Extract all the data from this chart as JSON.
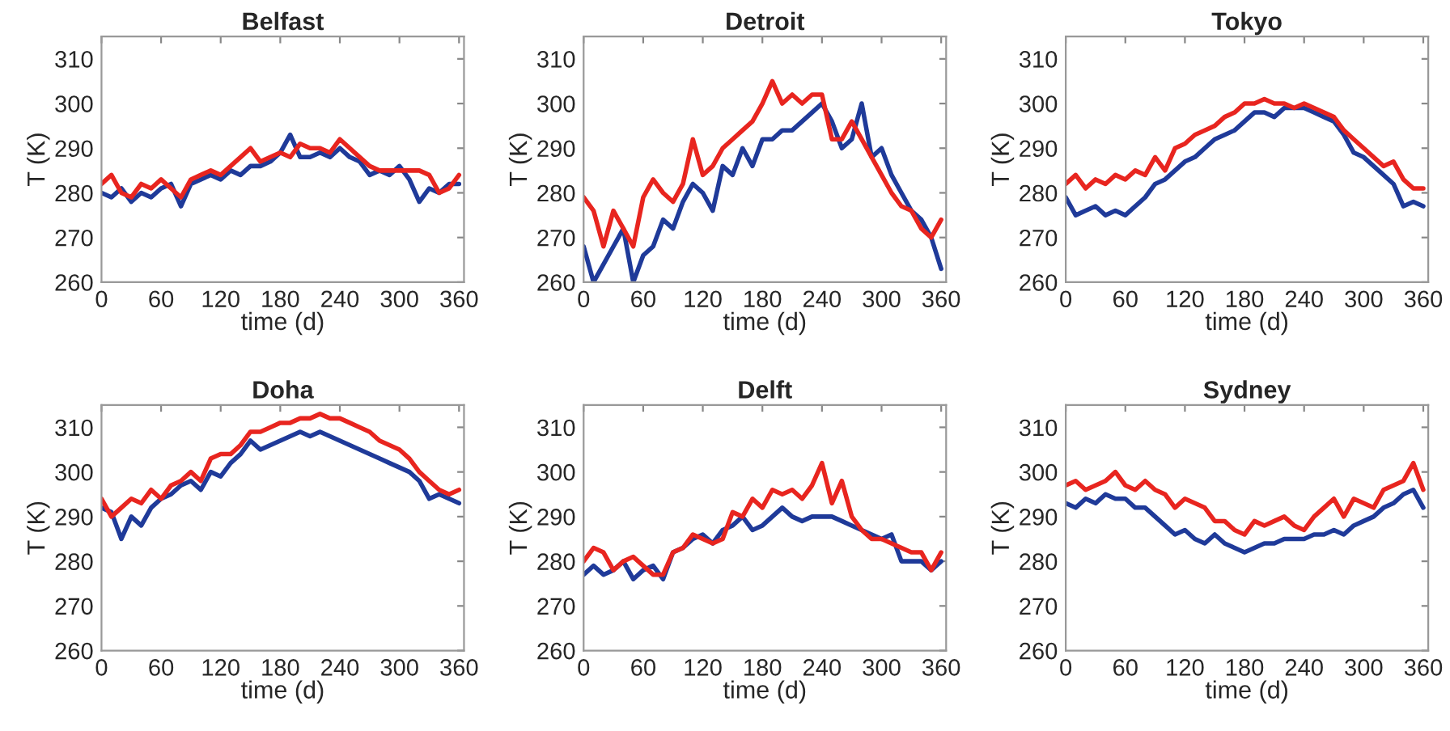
{
  "chart_data": [
    {
      "type": "line",
      "title": "Belfast",
      "xlabel": "time (d)",
      "ylabel": "T (K)",
      "xlim": [
        0,
        365
      ],
      "ylim": [
        260,
        315
      ],
      "xticks": [
        0,
        60,
        120,
        180,
        240,
        300,
        360
      ],
      "yticks": [
        260,
        270,
        280,
        290,
        300,
        310
      ],
      "grid": false,
      "legend": false,
      "x": [
        0,
        10,
        20,
        30,
        40,
        50,
        60,
        70,
        80,
        90,
        100,
        110,
        120,
        130,
        140,
        150,
        160,
        170,
        180,
        190,
        200,
        210,
        220,
        230,
        240,
        250,
        260,
        270,
        280,
        290,
        300,
        310,
        320,
        330,
        340,
        350,
        360
      ],
      "series": [
        {
          "color": "#1f3a99",
          "values": [
            280,
            279,
            281,
            278,
            280,
            279,
            281,
            282,
            277,
            282,
            283,
            284,
            283,
            285,
            284,
            286,
            286,
            287,
            289,
            293,
            288,
            288,
            289,
            288,
            290,
            288,
            287,
            284,
            285,
            284,
            286,
            283,
            278,
            281,
            280,
            282,
            282
          ]
        },
        {
          "color": "#e8251f",
          "values": [
            282,
            284,
            280,
            279,
            282,
            281,
            283,
            281,
            279,
            283,
            284,
            285,
            284,
            286,
            288,
            290,
            287,
            288,
            289,
            288,
            291,
            290,
            290,
            289,
            292,
            290,
            288,
            286,
            285,
            285,
            285,
            285,
            285,
            284,
            280,
            281,
            284
          ]
        }
      ]
    },
    {
      "type": "line",
      "title": "Detroit",
      "xlabel": "time (d)",
      "ylabel": "T (K)",
      "xlim": [
        0,
        365
      ],
      "ylim": [
        260,
        315
      ],
      "xticks": [
        0,
        60,
        120,
        180,
        240,
        300,
        360
      ],
      "yticks": [
        260,
        270,
        280,
        290,
        300,
        310
      ],
      "grid": false,
      "legend": false,
      "x": [
        0,
        10,
        20,
        30,
        40,
        50,
        60,
        70,
        80,
        90,
        100,
        110,
        120,
        130,
        140,
        150,
        160,
        170,
        180,
        190,
        200,
        210,
        220,
        230,
        240,
        250,
        260,
        270,
        280,
        290,
        300,
        310,
        320,
        330,
        340,
        350,
        360
      ],
      "series": [
        {
          "color": "#1f3a99",
          "values": [
            268,
            260,
            264,
            268,
            272,
            260,
            266,
            268,
            274,
            272,
            278,
            282,
            280,
            276,
            286,
            284,
            290,
            286,
            292,
            292,
            294,
            294,
            296,
            298,
            300,
            296,
            290,
            292,
            300,
            288,
            290,
            284,
            280,
            276,
            274,
            270,
            263
          ]
        },
        {
          "color": "#e8251f",
          "values": [
            279,
            276,
            268,
            276,
            272,
            268,
            279,
            283,
            280,
            278,
            282,
            292,
            284,
            286,
            290,
            292,
            294,
            296,
            300,
            305,
            300,
            302,
            300,
            302,
            302,
            292,
            292,
            296,
            292,
            288,
            284,
            280,
            277,
            276,
            272,
            270,
            274
          ]
        }
      ]
    },
    {
      "type": "line",
      "title": "Tokyo",
      "xlabel": "time (d)",
      "ylabel": "T (K)",
      "xlim": [
        0,
        365
      ],
      "ylim": [
        260,
        315
      ],
      "xticks": [
        0,
        60,
        120,
        180,
        240,
        300,
        360
      ],
      "yticks": [
        260,
        270,
        280,
        290,
        300,
        310
      ],
      "grid": false,
      "legend": false,
      "x": [
        0,
        10,
        20,
        30,
        40,
        50,
        60,
        70,
        80,
        90,
        100,
        110,
        120,
        130,
        140,
        150,
        160,
        170,
        180,
        190,
        200,
        210,
        220,
        230,
        240,
        250,
        260,
        270,
        280,
        290,
        300,
        310,
        320,
        330,
        340,
        350,
        360
      ],
      "series": [
        {
          "color": "#1f3a99",
          "values": [
            279,
            275,
            276,
            277,
            275,
            276,
            275,
            277,
            279,
            282,
            283,
            285,
            287,
            288,
            290,
            292,
            293,
            294,
            296,
            298,
            298,
            297,
            299,
            299,
            299,
            298,
            297,
            296,
            293,
            289,
            288,
            286,
            284,
            282,
            277,
            278,
            277
          ]
        },
        {
          "color": "#e8251f",
          "values": [
            282,
            284,
            281,
            283,
            282,
            284,
            283,
            285,
            284,
            288,
            285,
            290,
            291,
            293,
            294,
            295,
            297,
            298,
            300,
            300,
            301,
            300,
            300,
            299,
            300,
            299,
            298,
            297,
            294,
            292,
            290,
            288,
            286,
            287,
            283,
            281,
            281
          ]
        }
      ]
    },
    {
      "type": "line",
      "title": "Doha",
      "xlabel": "time (d)",
      "ylabel": "T (K)",
      "xlim": [
        0,
        365
      ],
      "ylim": [
        260,
        315
      ],
      "xticks": [
        0,
        60,
        120,
        180,
        240,
        300,
        360
      ],
      "yticks": [
        260,
        270,
        280,
        290,
        300,
        310
      ],
      "grid": false,
      "legend": false,
      "x": [
        0,
        10,
        20,
        30,
        40,
        50,
        60,
        70,
        80,
        90,
        100,
        110,
        120,
        130,
        140,
        150,
        160,
        170,
        180,
        190,
        200,
        210,
        220,
        230,
        240,
        250,
        260,
        270,
        280,
        290,
        300,
        310,
        320,
        330,
        340,
        350,
        360
      ],
      "series": [
        {
          "color": "#1f3a99",
          "values": [
            292,
            291,
            285,
            290,
            288,
            292,
            294,
            295,
            297,
            298,
            296,
            300,
            299,
            302,
            304,
            307,
            305,
            306,
            307,
            308,
            309,
            308,
            309,
            308,
            307,
            306,
            305,
            304,
            303,
            302,
            301,
            300,
            298,
            294,
            295,
            294,
            293
          ]
        },
        {
          "color": "#e8251f",
          "values": [
            294,
            290,
            292,
            294,
            293,
            296,
            294,
            297,
            298,
            300,
            298,
            303,
            304,
            304,
            306,
            309,
            309,
            310,
            311,
            311,
            312,
            312,
            313,
            312,
            312,
            311,
            310,
            309,
            307,
            306,
            305,
            303,
            300,
            298,
            296,
            295,
            296
          ]
        }
      ]
    },
    {
      "type": "line",
      "title": "Delft",
      "xlabel": "time (d)",
      "ylabel": "T (K)",
      "xlim": [
        0,
        365
      ],
      "ylim": [
        260,
        315
      ],
      "xticks": [
        0,
        60,
        120,
        180,
        240,
        300,
        360
      ],
      "yticks": [
        260,
        270,
        280,
        290,
        300,
        310
      ],
      "grid": false,
      "legend": false,
      "x": [
        0,
        10,
        20,
        30,
        40,
        50,
        60,
        70,
        80,
        90,
        100,
        110,
        120,
        130,
        140,
        150,
        160,
        170,
        180,
        190,
        200,
        210,
        220,
        230,
        240,
        250,
        260,
        270,
        280,
        290,
        300,
        310,
        320,
        330,
        340,
        350,
        360
      ],
      "series": [
        {
          "color": "#1f3a99",
          "values": [
            277,
            279,
            277,
            278,
            280,
            276,
            278,
            279,
            276,
            282,
            283,
            285,
            286,
            284,
            287,
            288,
            290,
            287,
            288,
            290,
            292,
            290,
            289,
            290,
            290,
            290,
            289,
            288,
            287,
            286,
            285,
            286,
            280,
            280,
            280,
            278,
            280
          ]
        },
        {
          "color": "#e8251f",
          "values": [
            280,
            283,
            282,
            278,
            280,
            281,
            279,
            277,
            277,
            282,
            283,
            286,
            285,
            284,
            285,
            291,
            290,
            294,
            292,
            296,
            295,
            296,
            294,
            297,
            302,
            293,
            298,
            290,
            287,
            285,
            285,
            284,
            283,
            282,
            282,
            278,
            282
          ]
        }
      ]
    },
    {
      "type": "line",
      "title": "Sydney",
      "xlabel": "time (d)",
      "ylabel": "T (K)",
      "xlim": [
        0,
        365
      ],
      "ylim": [
        260,
        315
      ],
      "xticks": [
        0,
        60,
        120,
        180,
        240,
        300,
        360
      ],
      "yticks": [
        260,
        270,
        280,
        290,
        300,
        310
      ],
      "grid": false,
      "legend": false,
      "x": [
        0,
        10,
        20,
        30,
        40,
        50,
        60,
        70,
        80,
        90,
        100,
        110,
        120,
        130,
        140,
        150,
        160,
        170,
        180,
        190,
        200,
        210,
        220,
        230,
        240,
        250,
        260,
        270,
        280,
        290,
        300,
        310,
        320,
        330,
        340,
        350,
        360
      ],
      "series": [
        {
          "color": "#1f3a99",
          "values": [
            293,
            292,
            294,
            293,
            295,
            294,
            294,
            292,
            292,
            290,
            288,
            286,
            287,
            285,
            284,
            286,
            284,
            283,
            282,
            283,
            284,
            284,
            285,
            285,
            285,
            286,
            286,
            287,
            286,
            288,
            289,
            290,
            292,
            293,
            295,
            296,
            292
          ]
        },
        {
          "color": "#e8251f",
          "values": [
            297,
            298,
            296,
            297,
            298,
            300,
            297,
            296,
            298,
            296,
            295,
            292,
            294,
            293,
            292,
            289,
            289,
            287,
            286,
            289,
            288,
            289,
            290,
            288,
            287,
            290,
            292,
            294,
            290,
            294,
            293,
            292,
            296,
            297,
            298,
            302,
            296
          ]
        }
      ]
    }
  ]
}
